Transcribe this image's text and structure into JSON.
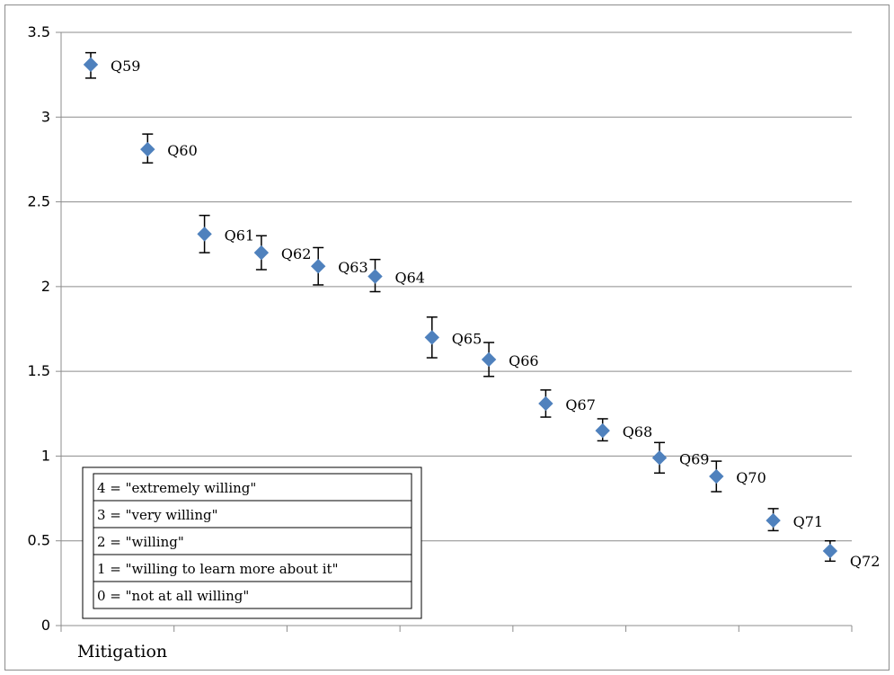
{
  "chart_data": {
    "type": "scatter",
    "title": "",
    "xlabel": "Mitigation",
    "ylabel": "",
    "ylim": [
      0,
      3.5
    ],
    "yticks": [
      "0",
      "0.5",
      "1",
      "1.5",
      "2",
      "2.5",
      "3",
      "3.5"
    ],
    "grid": "horizontal",
    "marker_color": "#4f81bd",
    "error_bar_color": "#000000",
    "series": [
      {
        "points": [
          {
            "label": "Q59",
            "y": 3.31,
            "err_low": 3.23,
            "err_high": 3.38
          },
          {
            "label": "Q60",
            "y": 2.81,
            "err_low": 2.73,
            "err_high": 2.9
          },
          {
            "label": "Q61",
            "y": 2.31,
            "err_low": 2.2,
            "err_high": 2.42
          },
          {
            "label": "Q62",
            "y": 2.2,
            "err_low": 2.1,
            "err_high": 2.3
          },
          {
            "label": "Q63",
            "y": 2.12,
            "err_low": 2.01,
            "err_high": 2.23
          },
          {
            "label": "Q64",
            "y": 2.06,
            "err_low": 1.97,
            "err_high": 2.16
          },
          {
            "label": "Q65",
            "y": 1.7,
            "err_low": 1.58,
            "err_high": 1.82
          },
          {
            "label": "Q66",
            "y": 1.57,
            "err_low": 1.47,
            "err_high": 1.67
          },
          {
            "label": "Q67",
            "y": 1.31,
            "err_low": 1.23,
            "err_high": 1.39
          },
          {
            "label": "Q68",
            "y": 1.15,
            "err_low": 1.09,
            "err_high": 1.22
          },
          {
            "label": "Q69",
            "y": 0.99,
            "err_low": 0.9,
            "err_high": 1.08
          },
          {
            "label": "Q70",
            "y": 0.88,
            "err_low": 0.79,
            "err_high": 0.97
          },
          {
            "label": "Q71",
            "y": 0.62,
            "err_low": 0.56,
            "err_high": 0.69
          },
          {
            "label": "Q72",
            "y": 0.44,
            "err_low": 0.38,
            "err_high": 0.5
          }
        ]
      }
    ],
    "legend_box": [
      "4 = \"extremely willing\"",
      "3 = \"very willing\"",
      "2 = \"willing\"",
      "1 = \"willing to learn more about it\"",
      "0 = \"not at all willing\""
    ],
    "legend_placement": "bottom-left"
  }
}
